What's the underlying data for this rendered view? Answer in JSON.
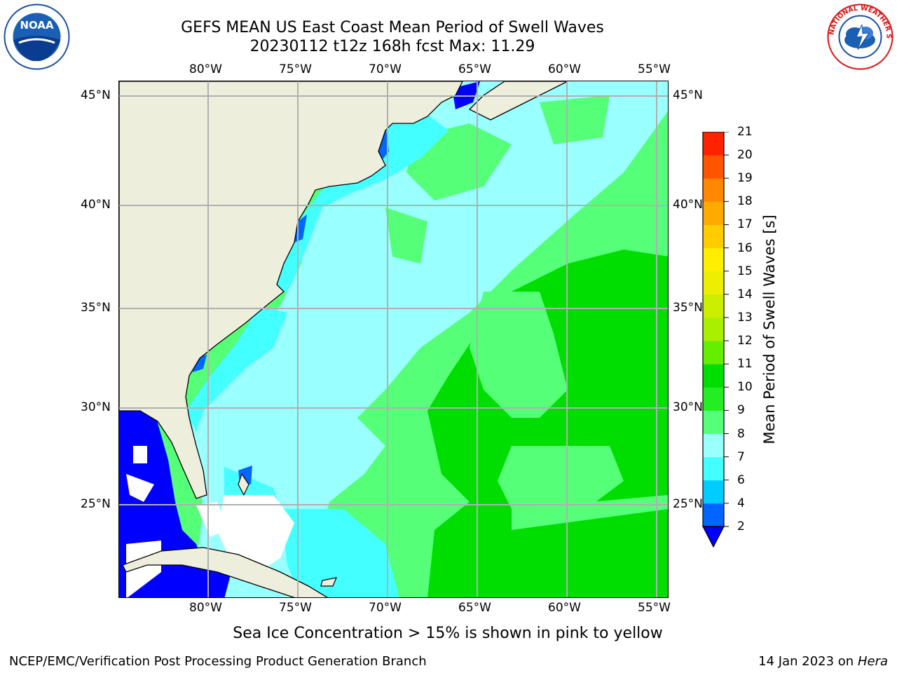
{
  "title": {
    "line1": "GEFS MEAN US East Coast Mean Period of Swell Waves",
    "line2": "20230112 t12z 168h fcst   Max: 11.29"
  },
  "logos": {
    "left": {
      "name": "noaa-logo",
      "text": "NOAA",
      "ring_text": "NATIONAL OCEANIC AND ATMOSPHERIC ADMINISTRATION · U.S. DEPARTMENT OF COMMERCE"
    },
    "right": {
      "name": "nws-logo",
      "ring_text": "NATIONAL WEATHER SERVICE"
    }
  },
  "map": {
    "longitude_ticks": [
      "80°W",
      "75°W",
      "70°W",
      "65°W",
      "60°W",
      "55°W"
    ],
    "latitude_ticks": [
      "45°N",
      "40°N",
      "35°N",
      "30°N",
      "25°N"
    ],
    "colors": {
      "land": "#eeeedd",
      "missing": "#ffffff",
      "gridline": "#b0b0b0",
      "coastline": "#000000"
    }
  },
  "colorbar": {
    "title": "Mean Period of Swell Waves [s]",
    "labels": [
      "2",
      "4",
      "6",
      "7",
      "8",
      "9",
      "10",
      "11",
      "12",
      "13",
      "14",
      "15",
      "16",
      "17",
      "18",
      "19",
      "20",
      "21"
    ],
    "colors": [
      "#0066ff",
      "#00ccff",
      "#44ffff",
      "#99ffff",
      "#55ff77",
      "#22ee22",
      "#00dd00",
      "#66ee00",
      "#aaee00",
      "#ccee00",
      "#eeee00",
      "#ffee00",
      "#ffcc00",
      "#ffaa00",
      "#ff8800",
      "#ff5500",
      "#ff2200"
    ],
    "under_color": "#0000ff",
    "unit": "s"
  },
  "note": "Sea Ice Concentration > 15% is shown in pink to yellow",
  "footer": {
    "left": "NCEP/EMC/Verification Post Processing Product Generation Branch",
    "right_date": "14 Jan 2023 on",
    "right_machine": "Hera"
  }
}
